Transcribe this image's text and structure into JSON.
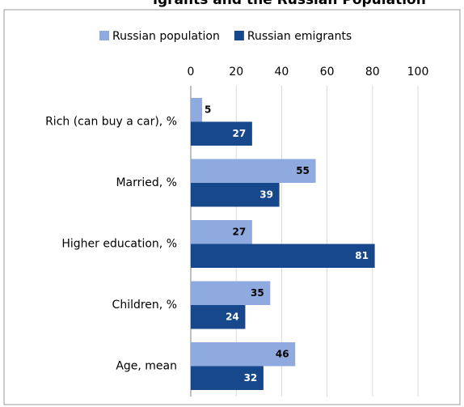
{
  "chart_data": {
    "type": "bar",
    "orientation": "horizontal",
    "title": "igrants and the Russian Population",
    "categories": [
      "Rich (can buy a car), %",
      "Married, %",
      "Higher education, %",
      "Children, %",
      "Age, mean"
    ],
    "series": [
      {
        "name": "Russian population",
        "color": "#8eaadf",
        "values": [
          5,
          55,
          27,
          35,
          46
        ]
      },
      {
        "name": "Russian emigrants",
        "color": "#17488c",
        "values": [
          27,
          39,
          81,
          24,
          32
        ]
      }
    ],
    "xlim": [
      0,
      100
    ],
    "xticks": [
      0,
      20,
      40,
      60,
      80,
      100
    ],
    "grid": true,
    "legend": "top"
  }
}
